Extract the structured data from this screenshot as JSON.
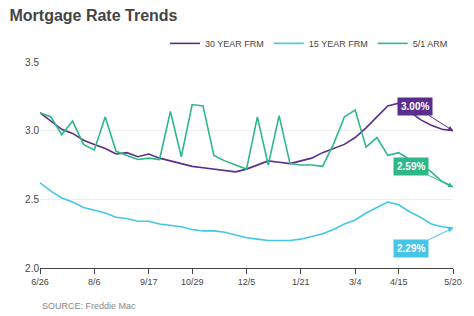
{
  "chart_data": {
    "type": "line",
    "title": "Mortgage Rate Trends",
    "categories": [
      "6/26",
      null,
      null,
      null,
      null,
      "8/6",
      null,
      null,
      null,
      null,
      "9/17",
      null,
      null,
      null,
      "10/29",
      null,
      null,
      null,
      null,
      "12/5",
      null,
      null,
      null,
      null,
      "1/21",
      null,
      null,
      null,
      null,
      "3/4",
      null,
      null,
      null,
      "4/15",
      null,
      null,
      null,
      null,
      "5/20"
    ],
    "series": [
      {
        "name": "30 YEAR FRM",
        "color": "#5b2d8e",
        "values": [
          3.13,
          3.07,
          3.01,
          2.98,
          2.93,
          2.9,
          2.87,
          2.83,
          2.84,
          2.81,
          2.83,
          2.8,
          2.78,
          2.76,
          2.74,
          2.73,
          2.72,
          2.71,
          2.7,
          2.72,
          2.75,
          2.78,
          2.77,
          2.76,
          2.78,
          2.8,
          2.84,
          2.87,
          2.9,
          2.95,
          3.02,
          3.1,
          3.18,
          3.2,
          3.14,
          3.08,
          3.04,
          3.01,
          3.0
        ]
      },
      {
        "name": "15 YEAR FRM",
        "color": "#45c5e8",
        "values": [
          2.62,
          2.56,
          2.51,
          2.48,
          2.44,
          2.42,
          2.4,
          2.37,
          2.36,
          2.34,
          2.34,
          2.32,
          2.31,
          2.3,
          2.28,
          2.27,
          2.27,
          2.26,
          2.24,
          2.22,
          2.21,
          2.2,
          2.2,
          2.2,
          2.21,
          2.23,
          2.25,
          2.28,
          2.32,
          2.35,
          2.4,
          2.44,
          2.48,
          2.46,
          2.41,
          2.37,
          2.32,
          2.3,
          2.29
        ]
      },
      {
        "name": "5/1 ARM",
        "color": "#2db88a",
        "values": [
          3.13,
          3.1,
          2.97,
          3.07,
          2.9,
          2.86,
          3.1,
          2.85,
          2.82,
          2.79,
          2.8,
          2.79,
          3.14,
          2.81,
          3.19,
          3.18,
          2.82,
          2.78,
          2.75,
          2.72,
          3.1,
          2.75,
          3.11,
          2.76,
          2.75,
          2.75,
          2.74,
          2.9,
          3.1,
          3.15,
          2.88,
          2.95,
          2.82,
          2.84,
          2.79,
          2.76,
          2.7,
          2.63,
          2.59
        ]
      }
    ],
    "ylim": [
      2.0,
      3.5
    ],
    "yticks": [
      {
        "value": 2.0,
        "label": "2.0"
      },
      {
        "value": 2.5,
        "label": "2.5"
      },
      {
        "value": 3.0,
        "label": "3.0"
      },
      {
        "value": 3.5,
        "label": "3.5"
      }
    ],
    "grid": true,
    "legend": "top right",
    "annotations": [
      {
        "text": "3.00%",
        "color": "#5b2d8e",
        "series": "30 YEAR FRM"
      },
      {
        "text": "2.59%",
        "color": "#2db88a",
        "series": "5/1 ARM"
      },
      {
        "text": "2.29%",
        "color": "#45c5e8",
        "series": "15 YEAR FRM"
      },
      {
        "text": "SOURCE: Freddie Mac"
      }
    ]
  }
}
